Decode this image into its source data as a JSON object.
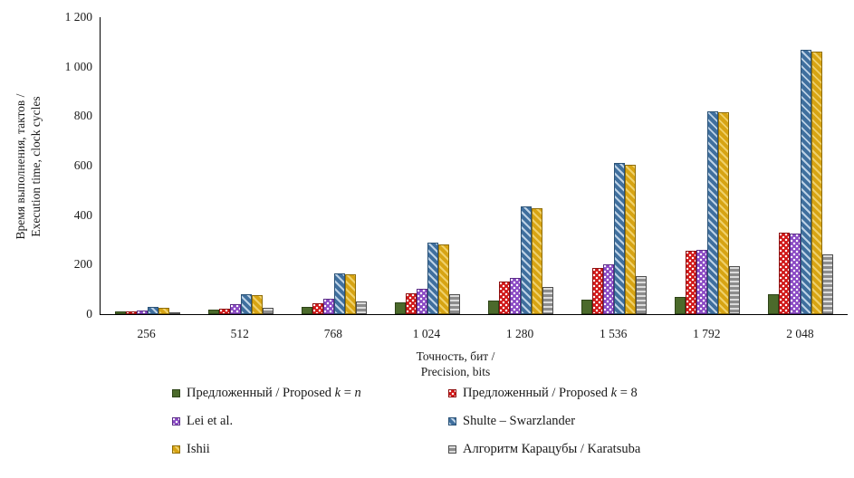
{
  "figure": {
    "background": "#ffffff",
    "axis_color": "#000000"
  },
  "axes": {
    "y_title_line1": "Время выполнения, тактов /",
    "y_title_line2": "Execution time, clock cycles",
    "x_title_line1": "Точность, бит /",
    "x_title_line2": "Precision, bits",
    "y_ticks": [
      "0",
      "200",
      "400",
      "600",
      "800",
      "1 000",
      "1 200"
    ],
    "y_tick_values": [
      0,
      200,
      400,
      600,
      800,
      1000,
      1200
    ]
  },
  "chart_data": {
    "type": "bar",
    "title": "",
    "xlabel": "Точность, бит / Precision, bits",
    "ylabel": "Время выполнения, тактов / Execution time, clock cycles",
    "ylim": [
      0,
      1200
    ],
    "ytick_step": 200,
    "grid": false,
    "legend_position": "bottom",
    "categories": [
      "256",
      "512",
      "768",
      "1 024",
      "1 280",
      "1 536",
      "1 792",
      "2 048"
    ],
    "series": [
      {
        "name": "Предложенный / Proposed k = n",
        "pattern": "solid",
        "color": "#4b6a2b",
        "accent": "#4b6a2b",
        "border": "#2e4418",
        "values": [
          10,
          20,
          30,
          48,
          55,
          60,
          70,
          80
        ]
      },
      {
        "name": "Предложенный / Proposed k = 8",
        "pattern": "dots",
        "color": "#d01717",
        "accent": "#ffffff",
        "border": "#8e0f0f",
        "values": [
          10,
          22,
          45,
          85,
          130,
          185,
          255,
          330
        ]
      },
      {
        "name": "Lei et al.",
        "pattern": "dots",
        "color": "#8a49c4",
        "accent": "#ffffff",
        "border": "#5a2b86",
        "values": [
          15,
          40,
          62,
          103,
          145,
          200,
          260,
          325
        ]
      },
      {
        "name": "Shulte – Swarzlander",
        "pattern": "diag",
        "color": "#3f6f9e",
        "accent": "#bdd2e6",
        "border": "#2c5377",
        "values": [
          30,
          82,
          165,
          290,
          435,
          610,
          820,
          1070
        ]
      },
      {
        "name": "Ishii",
        "pattern": "diag",
        "color": "#d7a413",
        "accent": "#efd06a",
        "border": "#8f6d08",
        "values": [
          25,
          78,
          160,
          283,
          428,
          605,
          815,
          1060
        ]
      },
      {
        "name": "Алгоритм Карацубы / Karatsuba",
        "pattern": "hstripes",
        "color": "#8c8c8c",
        "accent": "#dcdcdc",
        "border": "#4d4d4d",
        "values": [
          8,
          25,
          50,
          80,
          110,
          155,
          195,
          240
        ]
      }
    ]
  },
  "legend": {
    "items": [
      {
        "series": 0,
        "runs": [
          {
            "t": "Предложенный / Proposed ",
            "i": false
          },
          {
            "t": "k",
            "i": true
          },
          {
            "t": " = ",
            "i": false
          },
          {
            "t": "n",
            "i": true
          }
        ]
      },
      {
        "series": 1,
        "runs": [
          {
            "t": "Предложенный / Proposed ",
            "i": false
          },
          {
            "t": "k",
            "i": true
          },
          {
            "t": " = 8",
            "i": false
          }
        ]
      },
      {
        "series": 2,
        "runs": [
          {
            "t": "Lei et al.",
            "i": false
          }
        ]
      },
      {
        "series": 3,
        "runs": [
          {
            "t": "Shulte – Swarzlander",
            "i": false
          }
        ]
      },
      {
        "series": 4,
        "runs": [
          {
            "t": "Ishii",
            "i": false
          }
        ]
      },
      {
        "series": 5,
        "runs": [
          {
            "t": "Алгоритм Карацубы / Karatsuba",
            "i": false
          }
        ]
      }
    ]
  }
}
